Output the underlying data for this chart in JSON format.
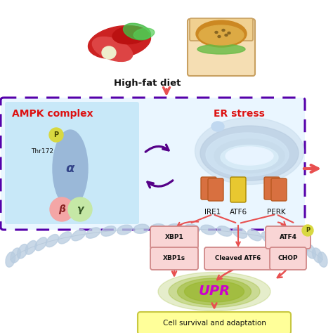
{
  "bg_color": "#ffffff",
  "fig_size": [
    4.74,
    4.74
  ],
  "dpi": 100,
  "high_fat_diet_text": "High-fat diet",
  "ampk_label": "AMPK complex",
  "er_stress_label": "ER stress",
  "upr_label": "UPR",
  "cell_survival_label": "Cell survival and adaptation",
  "ampk_alpha_color": "#9ab8d8",
  "ampk_beta_color": "#f4a6a6",
  "ampk_gamma_color": "#c5e8a6",
  "p_circle_color": "#d8d840",
  "box_fill": "#f9d5d5",
  "box_edge": "#d08888",
  "arrow_color": "#e85050",
  "bidirectional_color": "#550088",
  "dashed_box_color": "#5500aa",
  "ampk_bg_color": "#c8e8f8",
  "er_membrane_color": "#9ab8d8",
  "er_inner_color": "#d0e8f8",
  "ire1_color": "#d87040",
  "atf6_color": "#e8c830",
  "perk_color": "#d87040",
  "upr_bg": "#9ab830",
  "cell_survival_bg": "#ffff99",
  "cell_survival_edge": "#c8c840",
  "nucleus_chain_color": "#b8cce0"
}
